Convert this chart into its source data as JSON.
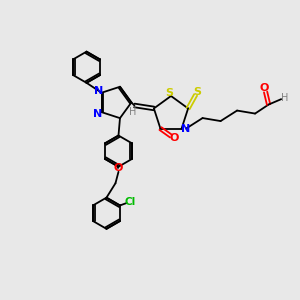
{
  "bg_color": "#e8e8e8",
  "bond_color": "#000000",
  "N_color": "#0000ff",
  "O_color": "#ff0000",
  "S_color": "#cccc00",
  "Cl_color": "#00bb00",
  "H_color": "#808080",
  "lw": 1.3,
  "fig_w": 3.0,
  "fig_h": 3.0,
  "dpi": 100,
  "xlim": [
    0,
    10
  ],
  "ylim": [
    0,
    10
  ]
}
